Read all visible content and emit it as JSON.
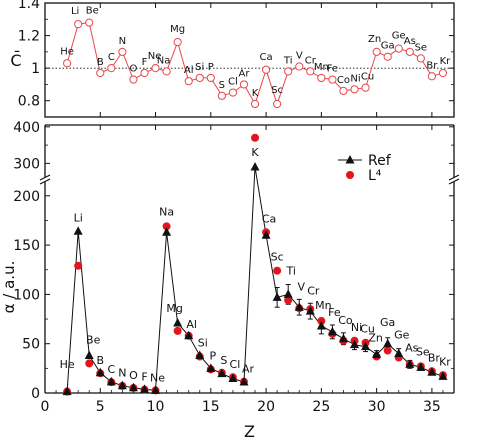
{
  "chart_data": [
    {
      "type": "line",
      "panel": "top",
      "ylabel": "C̄",
      "ylim": [
        0.7,
        1.4
      ],
      "yticks": [
        "0.8",
        "1",
        "1.2",
        "1.4"
      ],
      "xlim": [
        0,
        37
      ],
      "reference_line": 1,
      "series": [
        {
          "color": "#e8474a",
          "x": [
            2,
            3,
            4,
            5,
            6,
            7,
            8,
            9,
            10,
            11,
            12,
            13,
            14,
            15,
            16,
            17,
            18,
            19,
            20,
            21,
            22,
            23,
            24,
            25,
            26,
            27,
            28,
            29,
            30,
            31,
            32,
            33,
            34,
            35,
            36
          ],
          "values": [
            1.03,
            1.27,
            1.28,
            0.97,
            1.0,
            1.1,
            0.93,
            0.97,
            1.0,
            0.98,
            1.16,
            0.92,
            0.94,
            0.94,
            0.83,
            0.85,
            0.9,
            0.78,
            0.99,
            0.78,
            0.98,
            1.01,
            0.98,
            0.94,
            0.93,
            0.86,
            0.87,
            0.88,
            1.1,
            1.07,
            1.12,
            1.1,
            1.06,
            0.95,
            0.97
          ],
          "labels": [
            "He",
            "Li",
            "Be",
            "B",
            "C",
            "N",
            "O",
            "F",
            "Ne",
            "Na",
            "Mg",
            "Al",
            "Si",
            "P",
            "S",
            "Cl",
            "Ar",
            "K",
            "Ca",
            "Sc",
            "Ti",
            "V",
            "Cr",
            "Mn",
            "Fe",
            "Co",
            "Ni",
            "Cu",
            "Zn",
            "Ga",
            "Ge",
            "As",
            "Se",
            "Br",
            "Kr"
          ]
        }
      ]
    },
    {
      "type": "line",
      "panel": "bottom",
      "xlabel": "Z",
      "ylabel": "α / a.u.",
      "xlim": [
        0,
        37
      ],
      "xticks": [
        "0",
        "5",
        "10",
        "15",
        "20",
        "25",
        "30",
        "35"
      ],
      "ylim_lower": [
        0,
        215
      ],
      "ylim_upper": [
        260,
        405
      ],
      "yticks_lower": [
        "0",
        "50",
        "100",
        "150",
        "200"
      ],
      "yticks_upper": [
        "300",
        "400"
      ],
      "legend_position": "right",
      "series": [
        {
          "name": "Ref",
          "color": "#111111",
          "marker": "triangle",
          "x": [
            2,
            3,
            4,
            5,
            6,
            7,
            8,
            9,
            10,
            11,
            12,
            13,
            14,
            15,
            16,
            17,
            18,
            19,
            20,
            21,
            22,
            23,
            24,
            25,
            26,
            27,
            28,
            29,
            30,
            31,
            32,
            33,
            34,
            35,
            36
          ],
          "values": [
            1.4,
            164,
            38,
            20.5,
            11.3,
            7.4,
            5.3,
            3.7,
            2.7,
            163,
            71,
            58,
            38,
            25,
            19.6,
            14.7,
            11.1,
            290,
            160,
            97,
            100,
            87,
            83,
            68,
            62,
            55,
            49,
            47,
            39,
            50,
            40,
            29,
            26,
            21,
            16.8
          ],
          "errors": [
            0,
            0,
            0,
            0,
            0,
            0,
            0,
            0,
            0,
            0,
            0,
            0,
            0,
            0,
            0,
            0,
            0,
            0,
            0,
            10,
            10,
            8,
            8,
            8,
            7,
            6,
            5,
            5,
            4,
            6,
            5,
            4,
            3,
            2,
            2
          ]
        },
        {
          "name": "L⁴",
          "color": "#e3141b",
          "marker": "circle",
          "x": [
            2,
            3,
            4,
            5,
            6,
            7,
            8,
            9,
            10,
            11,
            12,
            13,
            14,
            15,
            16,
            17,
            18,
            19,
            20,
            21,
            22,
            23,
            24,
            25,
            26,
            27,
            28,
            29,
            30,
            31,
            32,
            33,
            34,
            35,
            36
          ],
          "values": [
            1.5,
            129,
            30,
            20,
            11,
            7.2,
            5.1,
            3.4,
            2.6,
            169,
            63,
            58,
            37,
            24,
            20.5,
            16,
            11.5,
            370,
            163,
            124,
            94,
            86,
            85,
            73,
            60,
            53,
            53,
            51,
            37,
            43,
            36,
            29,
            27,
            22,
            18
          ]
        }
      ],
      "point_labels": [
        {
          "x": 2,
          "text": "He"
        },
        {
          "x": 3,
          "text": "Li"
        },
        {
          "x": 4,
          "text": "Be"
        },
        {
          "x": 5,
          "text": "B"
        },
        {
          "x": 6,
          "text": "C"
        },
        {
          "x": 7,
          "text": "N"
        },
        {
          "x": 8,
          "text": "O"
        },
        {
          "x": 9,
          "text": "F"
        },
        {
          "x": 10,
          "text": "Ne"
        },
        {
          "x": 11,
          "text": "Na"
        },
        {
          "x": 12,
          "text": "Mg"
        },
        {
          "x": 13,
          "text": "Al"
        },
        {
          "x": 14,
          "text": "Si"
        },
        {
          "x": 15,
          "text": "P"
        },
        {
          "x": 16,
          "text": "S"
        },
        {
          "x": 17,
          "text": "Cl"
        },
        {
          "x": 18,
          "text": "Ar"
        },
        {
          "x": 19,
          "text": "K"
        },
        {
          "x": 20,
          "text": "Ca"
        },
        {
          "x": 21,
          "text": "Sc"
        },
        {
          "x": 22,
          "text": "Ti"
        },
        {
          "x": 23,
          "text": "V"
        },
        {
          "x": 24,
          "text": "Cr"
        },
        {
          "x": 25,
          "text": "Mn"
        },
        {
          "x": 26,
          "text": "Fe"
        },
        {
          "x": 27,
          "text": "Co"
        },
        {
          "x": 28,
          "text": "Ni"
        },
        {
          "x": 29,
          "text": "Cu"
        },
        {
          "x": 30,
          "text": "Zn"
        },
        {
          "x": 31,
          "text": "Ga"
        },
        {
          "x": 32,
          "text": "Ge"
        },
        {
          "x": 33,
          "text": "As"
        },
        {
          "x": 34,
          "text": "Se"
        },
        {
          "x": 35,
          "text": "Br"
        },
        {
          "x": 36,
          "text": "Kr"
        }
      ]
    }
  ]
}
